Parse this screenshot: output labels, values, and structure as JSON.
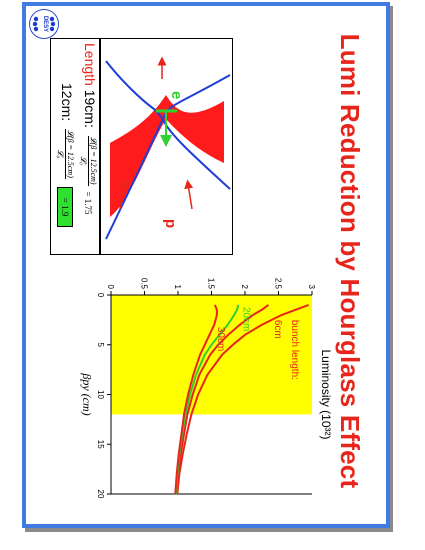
{
  "title": "Lumi Reduction by Hourglass Effect",
  "logo": {
    "text": "DESY"
  },
  "detector": {
    "label_e": "e",
    "label_p": "p"
  },
  "formula": {
    "length_label": "Length",
    "row1_length": "19cm:",
    "row2_length": "12cm:",
    "numerator": "𝓛(β = 12.5cm)",
    "denominator": "𝓛₀",
    "row1_value": "= 1.75",
    "row2_value": "= 1.9"
  },
  "chart_data": {
    "type": "line",
    "title": "Luminosity (10³²)",
    "xlabel": "βpy (cm)",
    "ylabel": "",
    "xlim": [
      0,
      20
    ],
    "ylim": [
      0,
      3
    ],
    "x_ticks": [
      "0",
      "5",
      "10",
      "15",
      "20"
    ],
    "y_ticks": [
      "0",
      "0.5",
      "1",
      "1.5",
      "2",
      "2.5",
      "3"
    ],
    "highlight_band": {
      "x_from": 0,
      "x_to": 12,
      "color": "#ffff00"
    },
    "annotations": [
      "bunch length:",
      "6cm",
      "20cm",
      "30cm"
    ],
    "x": [
      1,
      1.5,
      2,
      3,
      4,
      5,
      6,
      8,
      10,
      12,
      14,
      16,
      18,
      20
    ],
    "series": [
      {
        "name": "6cm",
        "color": "#e8251a",
        "values": [
          2.95,
          2.75,
          2.55,
          2.25,
          2.0,
          1.82,
          1.66,
          1.44,
          1.3,
          1.2,
          1.13,
          1.07,
          1.02,
          0.99
        ]
      },
      {
        "name": "",
        "color": "#e8251a",
        "values": [
          2.35,
          2.25,
          2.12,
          1.92,
          1.75,
          1.6,
          1.48,
          1.32,
          1.22,
          1.14,
          1.09,
          1.04,
          1.0,
          0.97
        ]
      },
      {
        "name": "20cm",
        "color": "#2fd02f",
        "values": [
          1.9,
          1.88,
          1.84,
          1.74,
          1.62,
          1.5,
          1.4,
          1.27,
          1.18,
          1.11,
          1.06,
          1.02,
          0.99,
          0.97
        ]
      },
      {
        "name": "30cm",
        "color": "#e8251a",
        "values": [
          1.55,
          1.58,
          1.58,
          1.54,
          1.47,
          1.4,
          1.33,
          1.23,
          1.15,
          1.09,
          1.05,
          1.01,
          0.98,
          0.96
        ]
      }
    ]
  }
}
